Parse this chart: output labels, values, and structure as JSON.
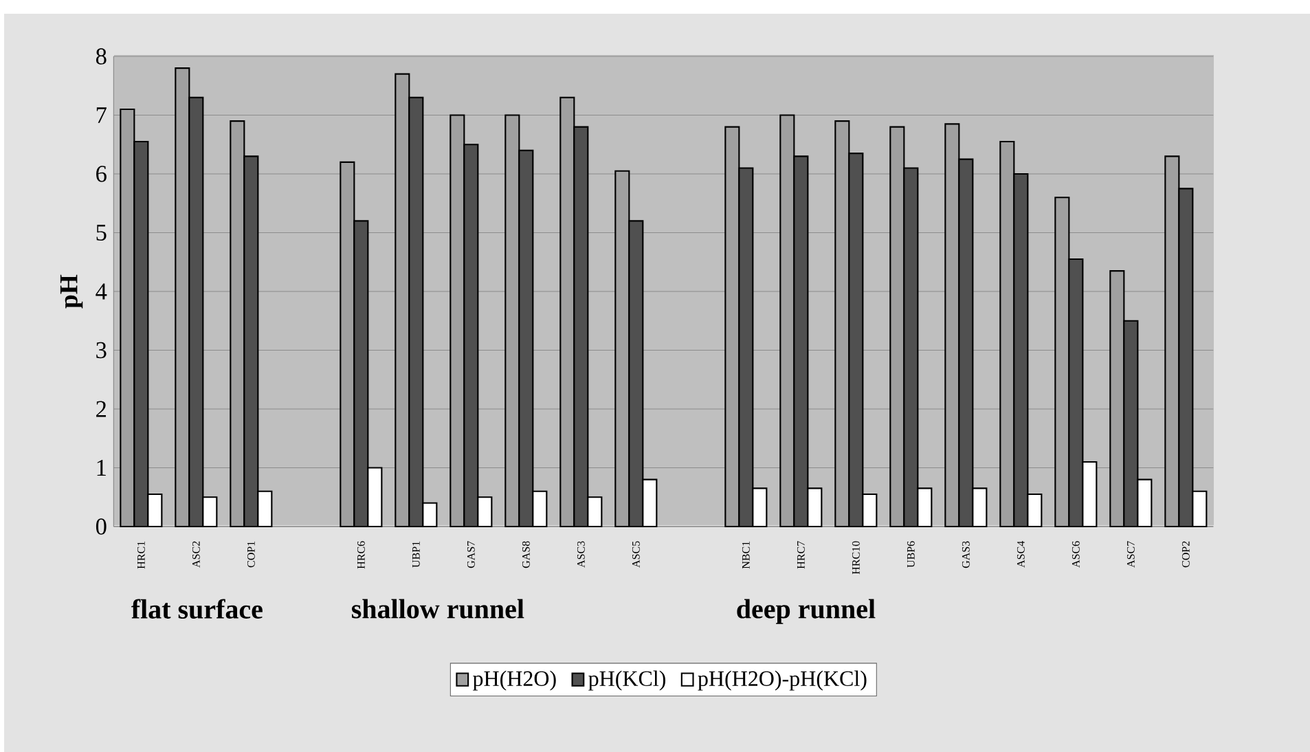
{
  "chart_data": {
    "type": "bar",
    "ylabel": "pH",
    "categories": [
      "HRC1",
      "ASC2",
      "COP1",
      null,
      "HRC6",
      "UBP1",
      "GAS7",
      "GAS8",
      "ASC3",
      "ASC5",
      null,
      "NBC1",
      "HRC7",
      "HRC10",
      "UBP6",
      "GAS3",
      "ASC4",
      "ASC6",
      "ASC7",
      "COP2"
    ],
    "series": [
      {
        "name": "pH(H2O)",
        "color": "#a0a0a0",
        "values": [
          7.1,
          7.8,
          6.9,
          null,
          6.2,
          7.7,
          7.0,
          7.0,
          7.3,
          6.05,
          null,
          6.8,
          7.0,
          6.9,
          6.8,
          6.85,
          6.55,
          5.6,
          4.35,
          6.3
        ]
      },
      {
        "name": "pH(KCl)",
        "color": "#505050",
        "values": [
          6.55,
          7.3,
          6.3,
          null,
          5.2,
          7.3,
          6.5,
          6.4,
          6.8,
          5.2,
          null,
          6.1,
          6.3,
          6.35,
          6.1,
          6.25,
          6.0,
          4.55,
          3.5,
          5.75
        ]
      },
      {
        "name": "pH(H2O)-pH(KCl)",
        "color": "#ffffff",
        "values": [
          0.55,
          0.5,
          0.6,
          null,
          1.0,
          0.4,
          0.5,
          0.6,
          0.5,
          0.8,
          null,
          0.65,
          0.65,
          0.55,
          0.65,
          0.65,
          0.55,
          1.1,
          0.8,
          0.6
        ]
      }
    ],
    "ylim": [
      0,
      8
    ],
    "yticks": [
      0,
      1,
      2,
      3,
      4,
      5,
      6,
      7,
      8
    ],
    "grid": "y",
    "legend": "bottom",
    "annotations": [
      "flat surface",
      "shallow runnel",
      "deep runnel"
    ]
  }
}
